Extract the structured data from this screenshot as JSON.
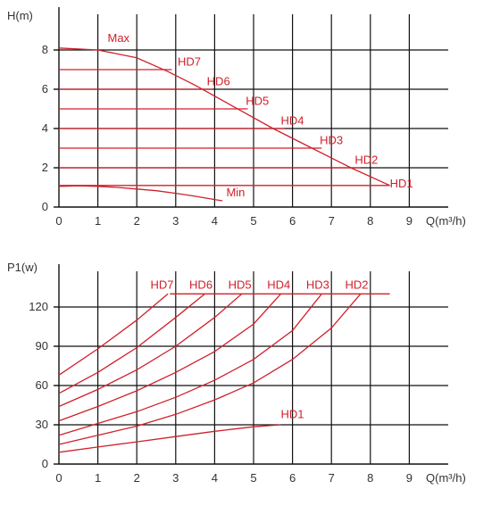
{
  "chart_data": [
    {
      "type": "line",
      "title": "",
      "xlabel": "Q(m³/h)",
      "ylabel": "H(m)",
      "xlim": [
        0,
        10
      ],
      "ylim": [
        0,
        10
      ],
      "xticks": [
        0,
        1,
        2,
        3,
        4,
        5,
        6,
        7,
        8,
        9
      ],
      "yticks": [
        0,
        2,
        4,
        6,
        8
      ],
      "grid": true,
      "accent_color": "#d0202a",
      "series": [
        {
          "name": "Max",
          "x": [
            0,
            1,
            2,
            2.8,
            3.5,
            4.5,
            5.5,
            6.5,
            7.5,
            8.5
          ],
          "y": [
            8.1,
            8.0,
            7.6,
            6.9,
            6.2,
            5.1,
            4.0,
            3.0,
            2.0,
            1.1
          ]
        },
        {
          "name": "HD7",
          "x": [
            0,
            2.9
          ],
          "y": [
            7.0,
            7.0
          ]
        },
        {
          "name": "HD6",
          "x": [
            0,
            3.95
          ],
          "y": [
            6.0,
            6.0
          ]
        },
        {
          "name": "HD5",
          "x": [
            0,
            4.85
          ],
          "y": [
            5.0,
            5.0
          ]
        },
        {
          "name": "HD4",
          "x": [
            0,
            5.8
          ],
          "y": [
            4.0,
            4.0
          ]
        },
        {
          "name": "HD3",
          "x": [
            0,
            6.75
          ],
          "y": [
            3.0,
            3.0
          ]
        },
        {
          "name": "HD2",
          "x": [
            0,
            7.75
          ],
          "y": [
            2.0,
            2.0
          ]
        },
        {
          "name": "HD1",
          "x": [
            0,
            8.5
          ],
          "y": [
            1.1,
            1.1
          ]
        },
        {
          "name": "Min",
          "x": [
            0,
            0.5,
            1,
            1.5,
            2,
            2.5,
            3,
            3.5,
            4,
            4.2
          ],
          "y": [
            1.05,
            1.08,
            1.05,
            1.0,
            0.92,
            0.83,
            0.7,
            0.55,
            0.38,
            0.32
          ]
        }
      ],
      "labels": [
        {
          "text": "Max",
          "x": 1.25,
          "y": 8.4
        },
        {
          "text": "HD7",
          "x": 3.05,
          "y": 7.2
        },
        {
          "text": "HD6",
          "x": 3.8,
          "y": 6.2
        },
        {
          "text": "HD5",
          "x": 4.8,
          "y": 5.2
        },
        {
          "text": "HD4",
          "x": 5.7,
          "y": 4.2
        },
        {
          "text": "HD3",
          "x": 6.7,
          "y": 3.2
        },
        {
          "text": "HD2",
          "x": 7.6,
          "y": 2.2
        },
        {
          "text": "HD1",
          "x": 8.5,
          "y": 1.0
        },
        {
          "text": "Min",
          "x": 4.3,
          "y": 0.55
        }
      ]
    },
    {
      "type": "line",
      "title": "",
      "xlabel": "Q(m³/h)",
      "ylabel": "P1(w)",
      "xlim": [
        0,
        10
      ],
      "ylim": [
        0,
        150
      ],
      "xticks": [
        0,
        1,
        2,
        3,
        4,
        5,
        6,
        7,
        8,
        9
      ],
      "yticks": [
        0,
        30,
        60,
        90,
        120
      ],
      "grid": true,
      "accent_color": "#d0202a",
      "series": [
        {
          "name": "HD7",
          "x": [
            0,
            1,
            2,
            2.8
          ],
          "y": [
            68,
            88,
            110,
            130
          ]
        },
        {
          "name": "HD6",
          "x": [
            0,
            1,
            2,
            3,
            3.75
          ],
          "y": [
            54,
            70,
            89,
            112,
            130
          ]
        },
        {
          "name": "HD5",
          "x": [
            0,
            1,
            2,
            3,
            4,
            4.7
          ],
          "y": [
            44,
            57,
            72,
            90,
            112,
            130
          ]
        },
        {
          "name": "HD4",
          "x": [
            0,
            1,
            2,
            3,
            4,
            5,
            5.7
          ],
          "y": [
            33,
            44,
            56,
            70,
            86,
            107,
            130
          ]
        },
        {
          "name": "HD3",
          "x": [
            0,
            1,
            2,
            3,
            4,
            5,
            6,
            6.75
          ],
          "y": [
            22,
            31,
            40,
            51,
            64,
            80,
            102,
            130
          ]
        },
        {
          "name": "HD2",
          "x": [
            0,
            1,
            2,
            3,
            4,
            5,
            6,
            7,
            7.75
          ],
          "y": [
            15,
            22,
            29,
            38,
            49,
            62,
            80,
            104,
            130
          ]
        },
        {
          "name": "HD1",
          "x": [
            0,
            1,
            2,
            3,
            4,
            5,
            5.7
          ],
          "y": [
            9,
            13,
            17,
            21,
            25,
            28.5,
            30
          ]
        },
        {
          "name": "",
          "x": [
            2.85,
            8.5
          ],
          "y": [
            130,
            130
          ]
        }
      ],
      "labels": [
        {
          "text": "HD7",
          "x": 2.35,
          "y": 134
        },
        {
          "text": "HD6",
          "x": 3.35,
          "y": 134
        },
        {
          "text": "HD5",
          "x": 4.35,
          "y": 134
        },
        {
          "text": "HD4",
          "x": 5.35,
          "y": 134
        },
        {
          "text": "HD3",
          "x": 6.35,
          "y": 134
        },
        {
          "text": "HD2",
          "x": 7.35,
          "y": 134
        },
        {
          "text": "HD1",
          "x": 5.7,
          "y": 35
        }
      ]
    }
  ]
}
